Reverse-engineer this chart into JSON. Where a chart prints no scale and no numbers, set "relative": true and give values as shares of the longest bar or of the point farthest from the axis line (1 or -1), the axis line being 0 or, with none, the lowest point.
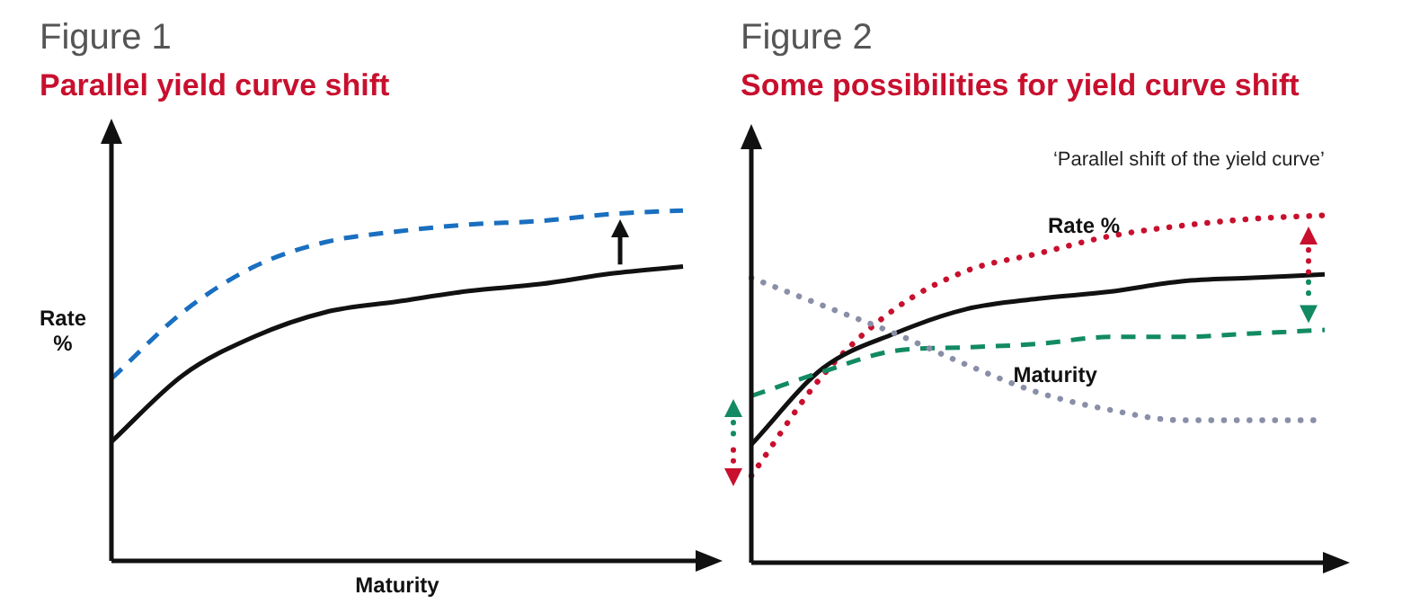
{
  "chart_data": [
    {
      "type": "line",
      "title": "Figure 1",
      "subtitle": "Parallel yield curve shift",
      "xlabel": "Maturity",
      "ylabel": "Rate %",
      "relative": true,
      "categories": [
        null,
        null,
        null,
        null,
        null,
        null,
        null,
        null,
        null
      ],
      "series": [
        {
          "color": "#111111",
          "line_style": "solid",
          "values": [
            0.34,
            0.53,
            0.64,
            0.71,
            0.74,
            0.77,
            0.79,
            0.82,
            0.84
          ]
        },
        {
          "color": "#1a6fc0",
          "line_style": "dashed",
          "values": [
            0.52,
            0.71,
            0.84,
            0.91,
            0.94,
            0.96,
            0.97,
            0.99,
            1.0
          ]
        }
      ]
    },
    {
      "type": "line",
      "title": "Figure 2",
      "subtitle": "Some possibilities for yield curve shift",
      "xlabel": "Maturity",
      "ylabel": "Rate %",
      "relative": true,
      "annotations": [
        "‘Parallel shift of the yield curve’"
      ],
      "categories": [
        null,
        null,
        null,
        null,
        null,
        null,
        null,
        null,
        null
      ],
      "series": [
        {
          "color": "#8a8fa8",
          "line_style": "dotted",
          "values": [
            0.82,
            0.74,
            0.66,
            0.57,
            0.49,
            0.44,
            0.41,
            0.41,
            0.41
          ]
        },
        {
          "color": "#128a63",
          "line_style": "dashed",
          "values": [
            0.48,
            0.55,
            0.61,
            0.62,
            0.63,
            0.65,
            0.65,
            0.66,
            0.67
          ]
        },
        {
          "color": "#111111",
          "line_style": "solid",
          "values": [
            0.34,
            0.56,
            0.66,
            0.73,
            0.76,
            0.78,
            0.81,
            0.82,
            0.83
          ]
        },
        {
          "color": "#c8102e",
          "line_style": "dotted",
          "values": [
            0.25,
            0.54,
            0.73,
            0.84,
            0.89,
            0.94,
            0.97,
            0.99,
            1.0
          ]
        }
      ]
    }
  ]
}
